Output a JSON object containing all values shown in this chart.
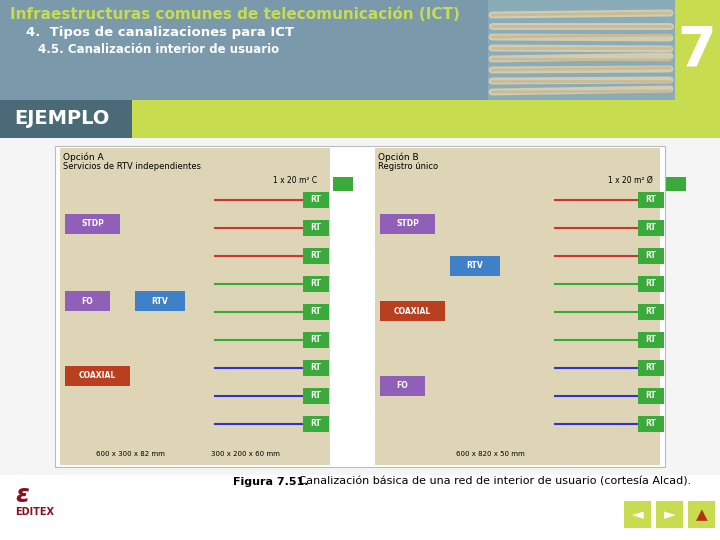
{
  "title_text": "Infraestructuras comunes de telecomunicación (ICT)",
  "subtitle1": "4.  Tipos de canalizaciones para ICT",
  "subtitle2": "4.5. Canalización interior de usuario",
  "ejemplo_text": "EJEMPLO",
  "caption_bold": "Figura 7.51.",
  "caption_normal": " Canalización básica de una red de interior de usuario (cortesía Alcad).",
  "header_bg_color": "#7a9aac",
  "title_color": "#c8dc50",
  "subtitle_color": "#ffffff",
  "ejemplo_bg_color": "#4a6a78",
  "ejemplo_text_color": "#ffffff",
  "yellow_bar_color": "#c8dc50",
  "number_7": "7",
  "bg_color": "#ffffff",
  "nav_color": "#c8dc50",
  "editex_color": "#8a1020"
}
